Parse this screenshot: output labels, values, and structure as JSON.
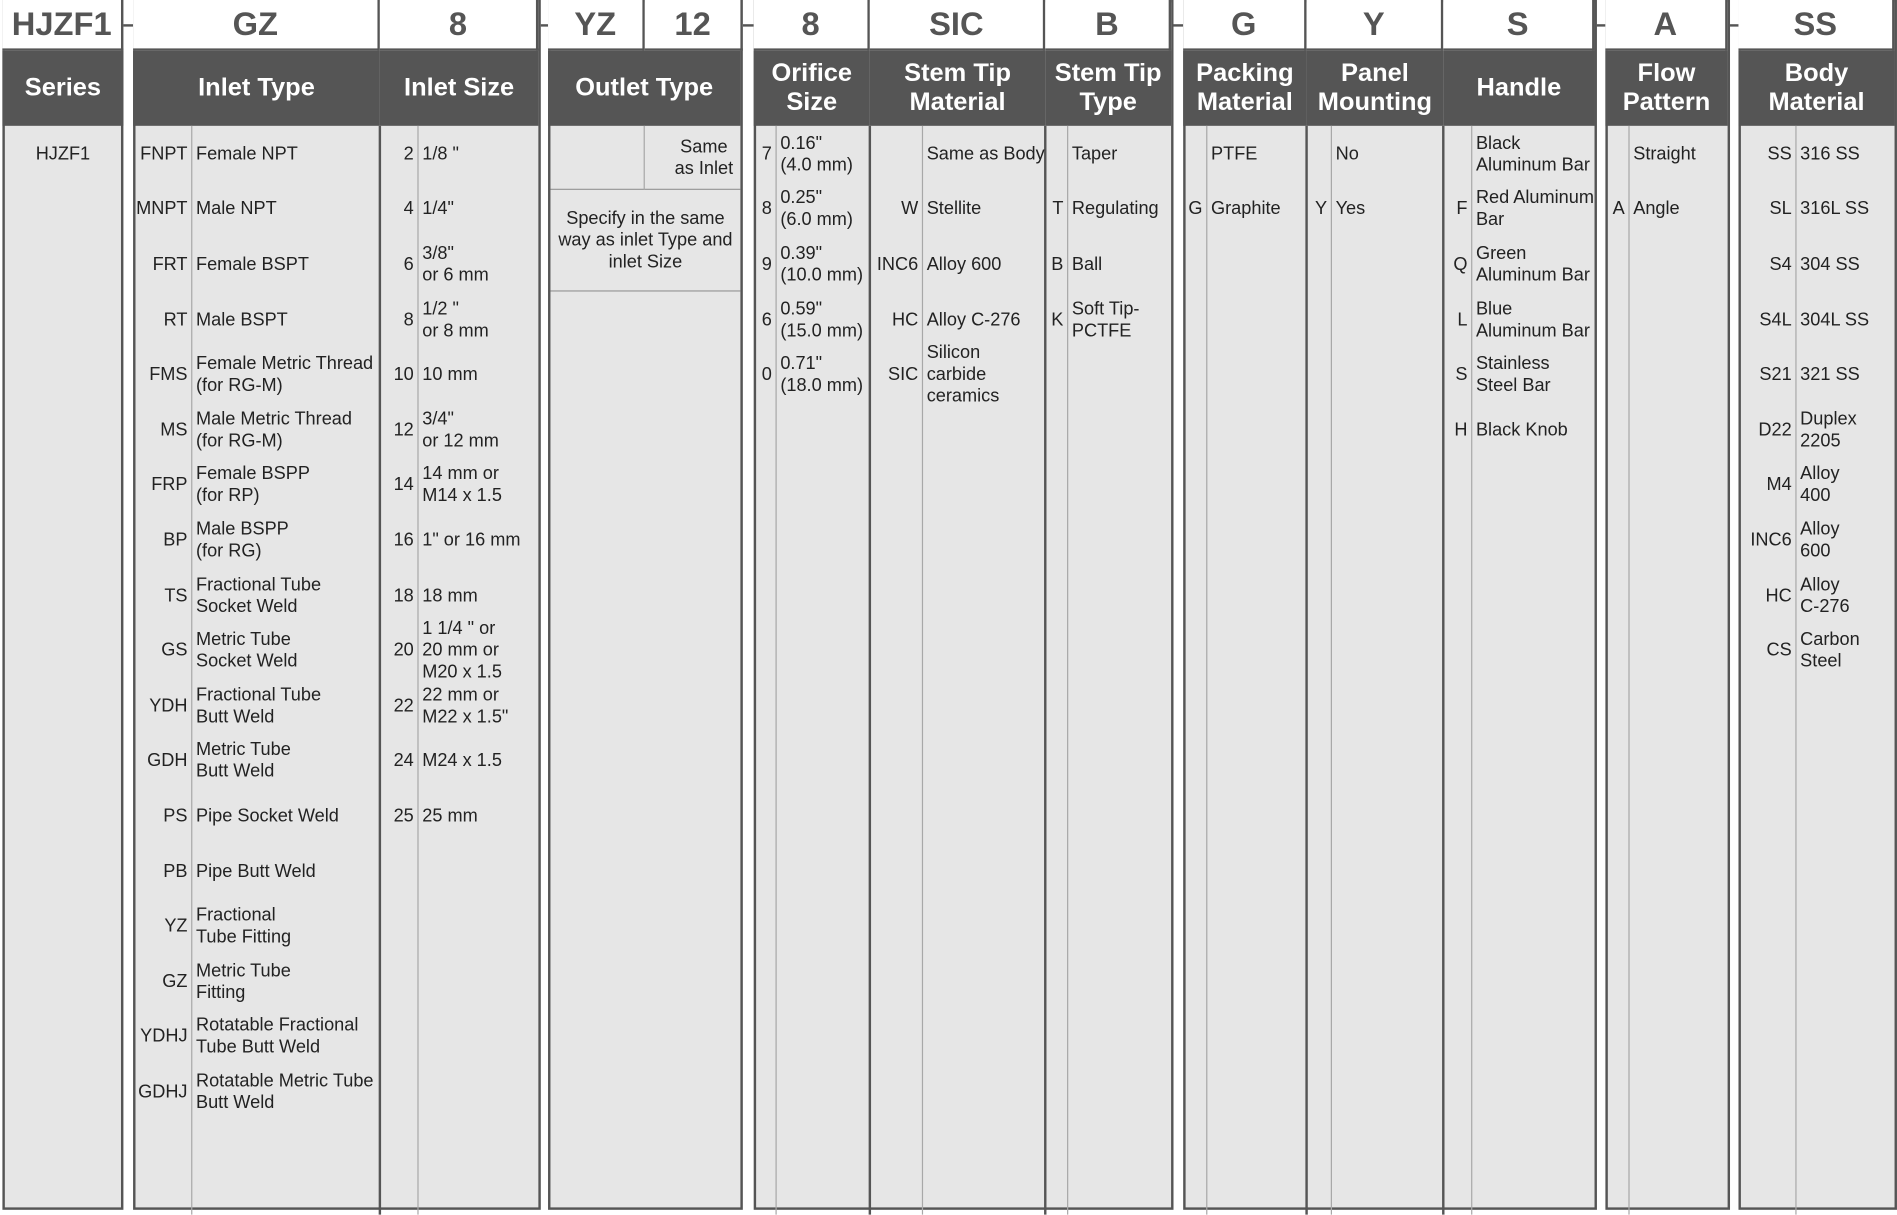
{
  "series": {
    "code": "HJZF1",
    "header": "Series",
    "value": "HJZF1"
  },
  "outlet": {
    "codes": [
      "YZ",
      "12"
    ],
    "header": "Outlet Type",
    "same_label": "Same\nas Inlet",
    "specify_label": "Specify in the same\nway as inlet Type and\ninlet Size"
  },
  "columns": [
    {
      "name": "inlet-type",
      "code": "GZ",
      "header": "Inlet Type",
      "options": [
        {
          "code": "FNPT",
          "label": "Female NPT"
        },
        {
          "code": "MNPT",
          "label": "Male NPT"
        },
        {
          "code": "FRT",
          "label": "Female BSPT"
        },
        {
          "code": "RT",
          "label": "Male BSPT"
        },
        {
          "code": "FMS",
          "label": "Female Metric Thread\n(for RG-M)"
        },
        {
          "code": "MS",
          "label": "Male Metric Thread\n(for RG-M)"
        },
        {
          "code": "FRP",
          "label": "Female BSPP\n(for RP)"
        },
        {
          "code": "BP",
          "label": "Male BSPP\n(for RG)"
        },
        {
          "code": "TS",
          "label": "Fractional Tube\nSocket Weld"
        },
        {
          "code": "GS",
          "label": "Metric Tube\nSocket Weld"
        },
        {
          "code": "YDH",
          "label": "Fractional Tube\nButt Weld"
        },
        {
          "code": "GDH",
          "label": "Metric Tube\nButt Weld"
        },
        {
          "code": "PS",
          "label": "Pipe Socket Weld"
        },
        {
          "code": "PB",
          "label": "Pipe Butt Weld"
        },
        {
          "code": "YZ",
          "label": "Fractional\nTube Fitting"
        },
        {
          "code": "GZ",
          "label": "Metric Tube\nFitting"
        },
        {
          "code": "YDHJ",
          "label": "Rotatable Fractional\nTube Butt Weld"
        },
        {
          "code": "GDHJ",
          "label": "Rotatable Metric Tube\nButt Weld"
        }
      ]
    },
    {
      "name": "inlet-size",
      "code": "8",
      "header": "Inlet Size",
      "options": [
        {
          "code": "2",
          "label": "1/8 \""
        },
        {
          "code": "4",
          "label": "1/4\""
        },
        {
          "code": "6",
          "label": "3/8\"\nor 6 mm"
        },
        {
          "code": "8",
          "label": "1/2 \"\nor 8 mm"
        },
        {
          "code": "10",
          "label": "10 mm"
        },
        {
          "code": "12",
          "label": "3/4\"\nor 12 mm"
        },
        {
          "code": "14",
          "label": "14 mm or\nM14 x 1.5"
        },
        {
          "code": "16",
          "label": "1\" or 16 mm"
        },
        {
          "code": "18",
          "label": "18 mm"
        },
        {
          "code": "20",
          "label": "1  1/4 \" or\n20 mm or\nM20 x 1.5"
        },
        {
          "code": "22",
          "label": "22 mm or\nM22 x 1.5\""
        },
        {
          "code": "24",
          "label": "M24 x 1.5"
        },
        {
          "code": "25",
          "label": "25 mm"
        }
      ]
    },
    {
      "name": "orifice-size",
      "code": "8",
      "header": "Orifice\nSize",
      "options": [
        {
          "code": "7",
          "label": "0.16\"\n(4.0 mm)"
        },
        {
          "code": "8",
          "label": "0.25\"\n(6.0 mm)"
        },
        {
          "code": "9",
          "label": "0.39\"\n(10.0 mm)"
        },
        {
          "code": "6",
          "label": "0.59\"\n(15.0 mm)"
        },
        {
          "code": "0",
          "label": "0.71\"\n(18.0 mm)"
        }
      ]
    },
    {
      "name": "stem-tip-material",
      "code": "SIC",
      "header": "Stem Tip\nMaterial",
      "options": [
        {
          "code": "",
          "label": "Same as Body"
        },
        {
          "code": "W",
          "label": "Stellite"
        },
        {
          "code": "INC6",
          "label": "Alloy 600"
        },
        {
          "code": "HC",
          "label": "Alloy C-276"
        },
        {
          "code": "SIC",
          "label": "Silicon\ncarbide\nceramics"
        }
      ]
    },
    {
      "name": "stem-tip-type",
      "code": "B",
      "header": "Stem Tip\nType",
      "options": [
        {
          "code": "",
          "label": "Taper"
        },
        {
          "code": "T",
          "label": "Regulating"
        },
        {
          "code": "B",
          "label": "Ball"
        },
        {
          "code": "K",
          "label": "Soft Tip-\nPCTFE"
        }
      ]
    },
    {
      "name": "packing-material",
      "code": "G",
      "header": "Packing\nMaterial",
      "options": [
        {
          "code": "",
          "label": "PTFE"
        },
        {
          "code": "G",
          "label": "Graphite"
        }
      ]
    },
    {
      "name": "panel-mounting",
      "code": "Y",
      "header": "Panel\nMounting",
      "options": [
        {
          "code": "",
          "label": "No"
        },
        {
          "code": "Y",
          "label": "Yes"
        }
      ]
    },
    {
      "name": "handle",
      "code": "S",
      "header": "Handle",
      "options": [
        {
          "code": "",
          "label": "Black\nAluminum Bar"
        },
        {
          "code": "F",
          "label": "Red Aluminum\nBar"
        },
        {
          "code": "Q",
          "label": "Green\nAluminum Bar"
        },
        {
          "code": "L",
          "label": "Blue\nAluminum Bar"
        },
        {
          "code": "S",
          "label": "Stainless\nSteel Bar"
        },
        {
          "code": "H",
          "label": "Black Knob"
        }
      ]
    },
    {
      "name": "flow-pattern",
      "code": "A",
      "header": "Flow\nPattern",
      "options": [
        {
          "code": "",
          "label": "Straight"
        },
        {
          "code": "A",
          "label": "Angle"
        }
      ]
    },
    {
      "name": "body-material",
      "code": "SS",
      "header": "Body\nMaterial",
      "options": [
        {
          "code": "SS",
          "label": "316 SS"
        },
        {
          "code": "SL",
          "label": "316L SS"
        },
        {
          "code": "S4",
          "label": "304 SS"
        },
        {
          "code": "S4L",
          "label": "304L SS"
        },
        {
          "code": "S21",
          "label": "321 SS"
        },
        {
          "code": "D22",
          "label": "Duplex\n2205"
        },
        {
          "code": "M4",
          "label": "Alloy\n400"
        },
        {
          "code": "INC6",
          "label": "Alloy\n600"
        },
        {
          "code": "HC",
          "label": "Alloy\nC-276"
        },
        {
          "code": "CS",
          "label": "Carbon\nSteel"
        }
      ]
    }
  ],
  "colors": {
    "border": "#555555",
    "header_bg": "#555555",
    "body_bg": "#e6e6e6",
    "code_text": "#555555"
  }
}
